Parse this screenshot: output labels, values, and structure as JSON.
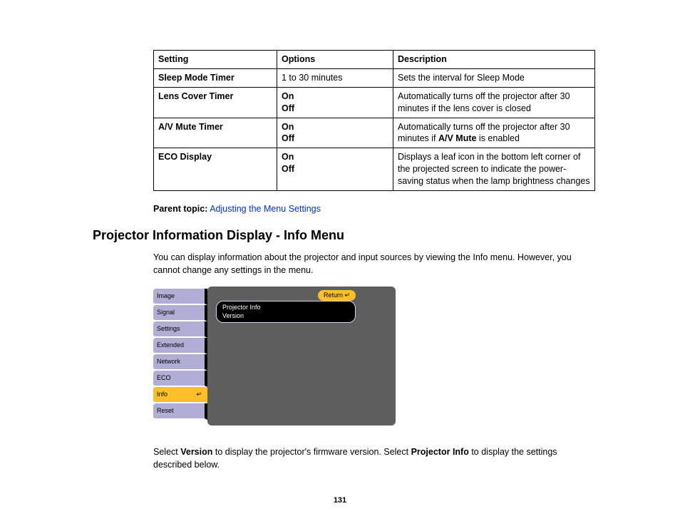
{
  "table": {
    "headers": [
      "Setting",
      "Options",
      "Description"
    ],
    "rows": [
      {
        "setting": "Sleep Mode Timer",
        "options": [
          "1 to 30 minutes"
        ],
        "options_bold": [
          false
        ],
        "desc_pre": "Sets the interval for Sleep Mode",
        "desc_bold": "",
        "desc_post": ""
      },
      {
        "setting": "Lens Cover Timer",
        "options": [
          "On",
          "Off"
        ],
        "options_bold": [
          true,
          true
        ],
        "desc_pre": "Automatically turns off the projector after 30 minutes if the lens cover is closed",
        "desc_bold": "",
        "desc_post": ""
      },
      {
        "setting": "A/V Mute Timer",
        "options": [
          "On",
          "Off"
        ],
        "options_bold": [
          true,
          true
        ],
        "desc_pre": "Automatically turns off the projector after 30 minutes if ",
        "desc_bold": "A/V Mute",
        "desc_post": " is enabled"
      },
      {
        "setting": "ECO Display",
        "options": [
          "On",
          "Off"
        ],
        "options_bold": [
          true,
          true
        ],
        "desc_pre": "Displays a leaf icon in the bottom left corner of the projected screen to indicate the power-saving status when the lamp brightness changes",
        "desc_bold": "",
        "desc_post": ""
      }
    ]
  },
  "parent": {
    "label": "Parent topic:",
    "link": "Adjusting the Menu Settings"
  },
  "heading": "Projector Information Display - Info Menu",
  "intro": "You can display information about the projector and input sources by viewing the Info menu. However, you cannot change any settings in the menu.",
  "menu": {
    "items": [
      "Image",
      "Signal",
      "Settings",
      "Extended",
      "Network",
      "ECO",
      "Info",
      "Reset"
    ],
    "active_index": 6,
    "return": "Return",
    "submenu": [
      "Projector Info",
      "Version"
    ]
  },
  "footer": {
    "pre1": "Select ",
    "b1": "Version",
    "mid": " to display the projector's firmware version. Select ",
    "b2": "Projector Info",
    "post": " to display the settings described below."
  },
  "pageNum": "131",
  "colors": {
    "link": "#0033cc",
    "sidebar_inactive": "#b0aed4",
    "sidebar_active": "#fdbf28",
    "panel_bg": "#5e5e5e"
  }
}
